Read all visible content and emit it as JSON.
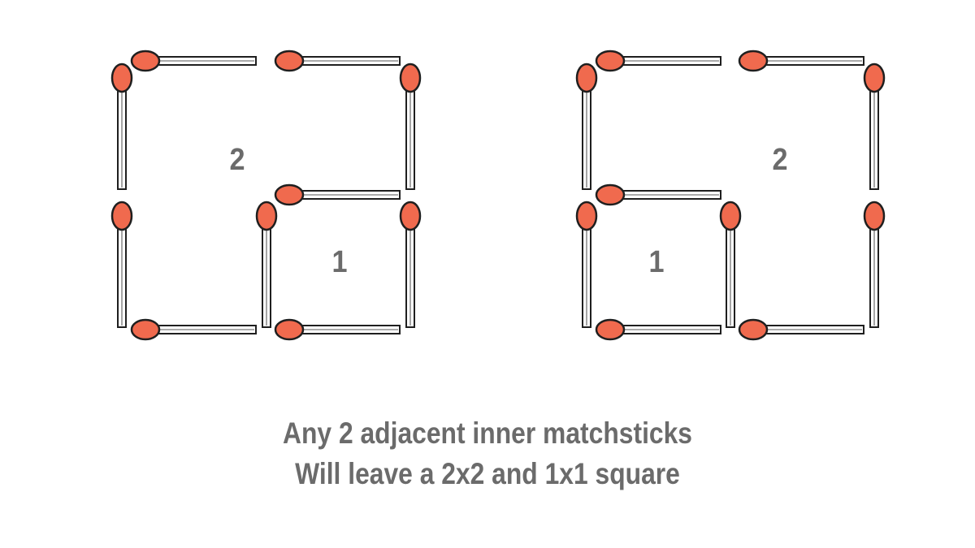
{
  "colors": {
    "match_head": "#f06a4e",
    "match_outline": "#1f1f1f",
    "stick_fill": "#ffffff",
    "text": "#6b6b6b",
    "background": "#ffffff"
  },
  "left_figure": {
    "label_large": "2",
    "label_small": "1"
  },
  "right_figure": {
    "label_large": "2",
    "label_small": "1"
  },
  "caption": {
    "line1": "Any 2 adjacent inner matchsticks",
    "line2": "Will leave a 2x2 and 1x1 square"
  }
}
